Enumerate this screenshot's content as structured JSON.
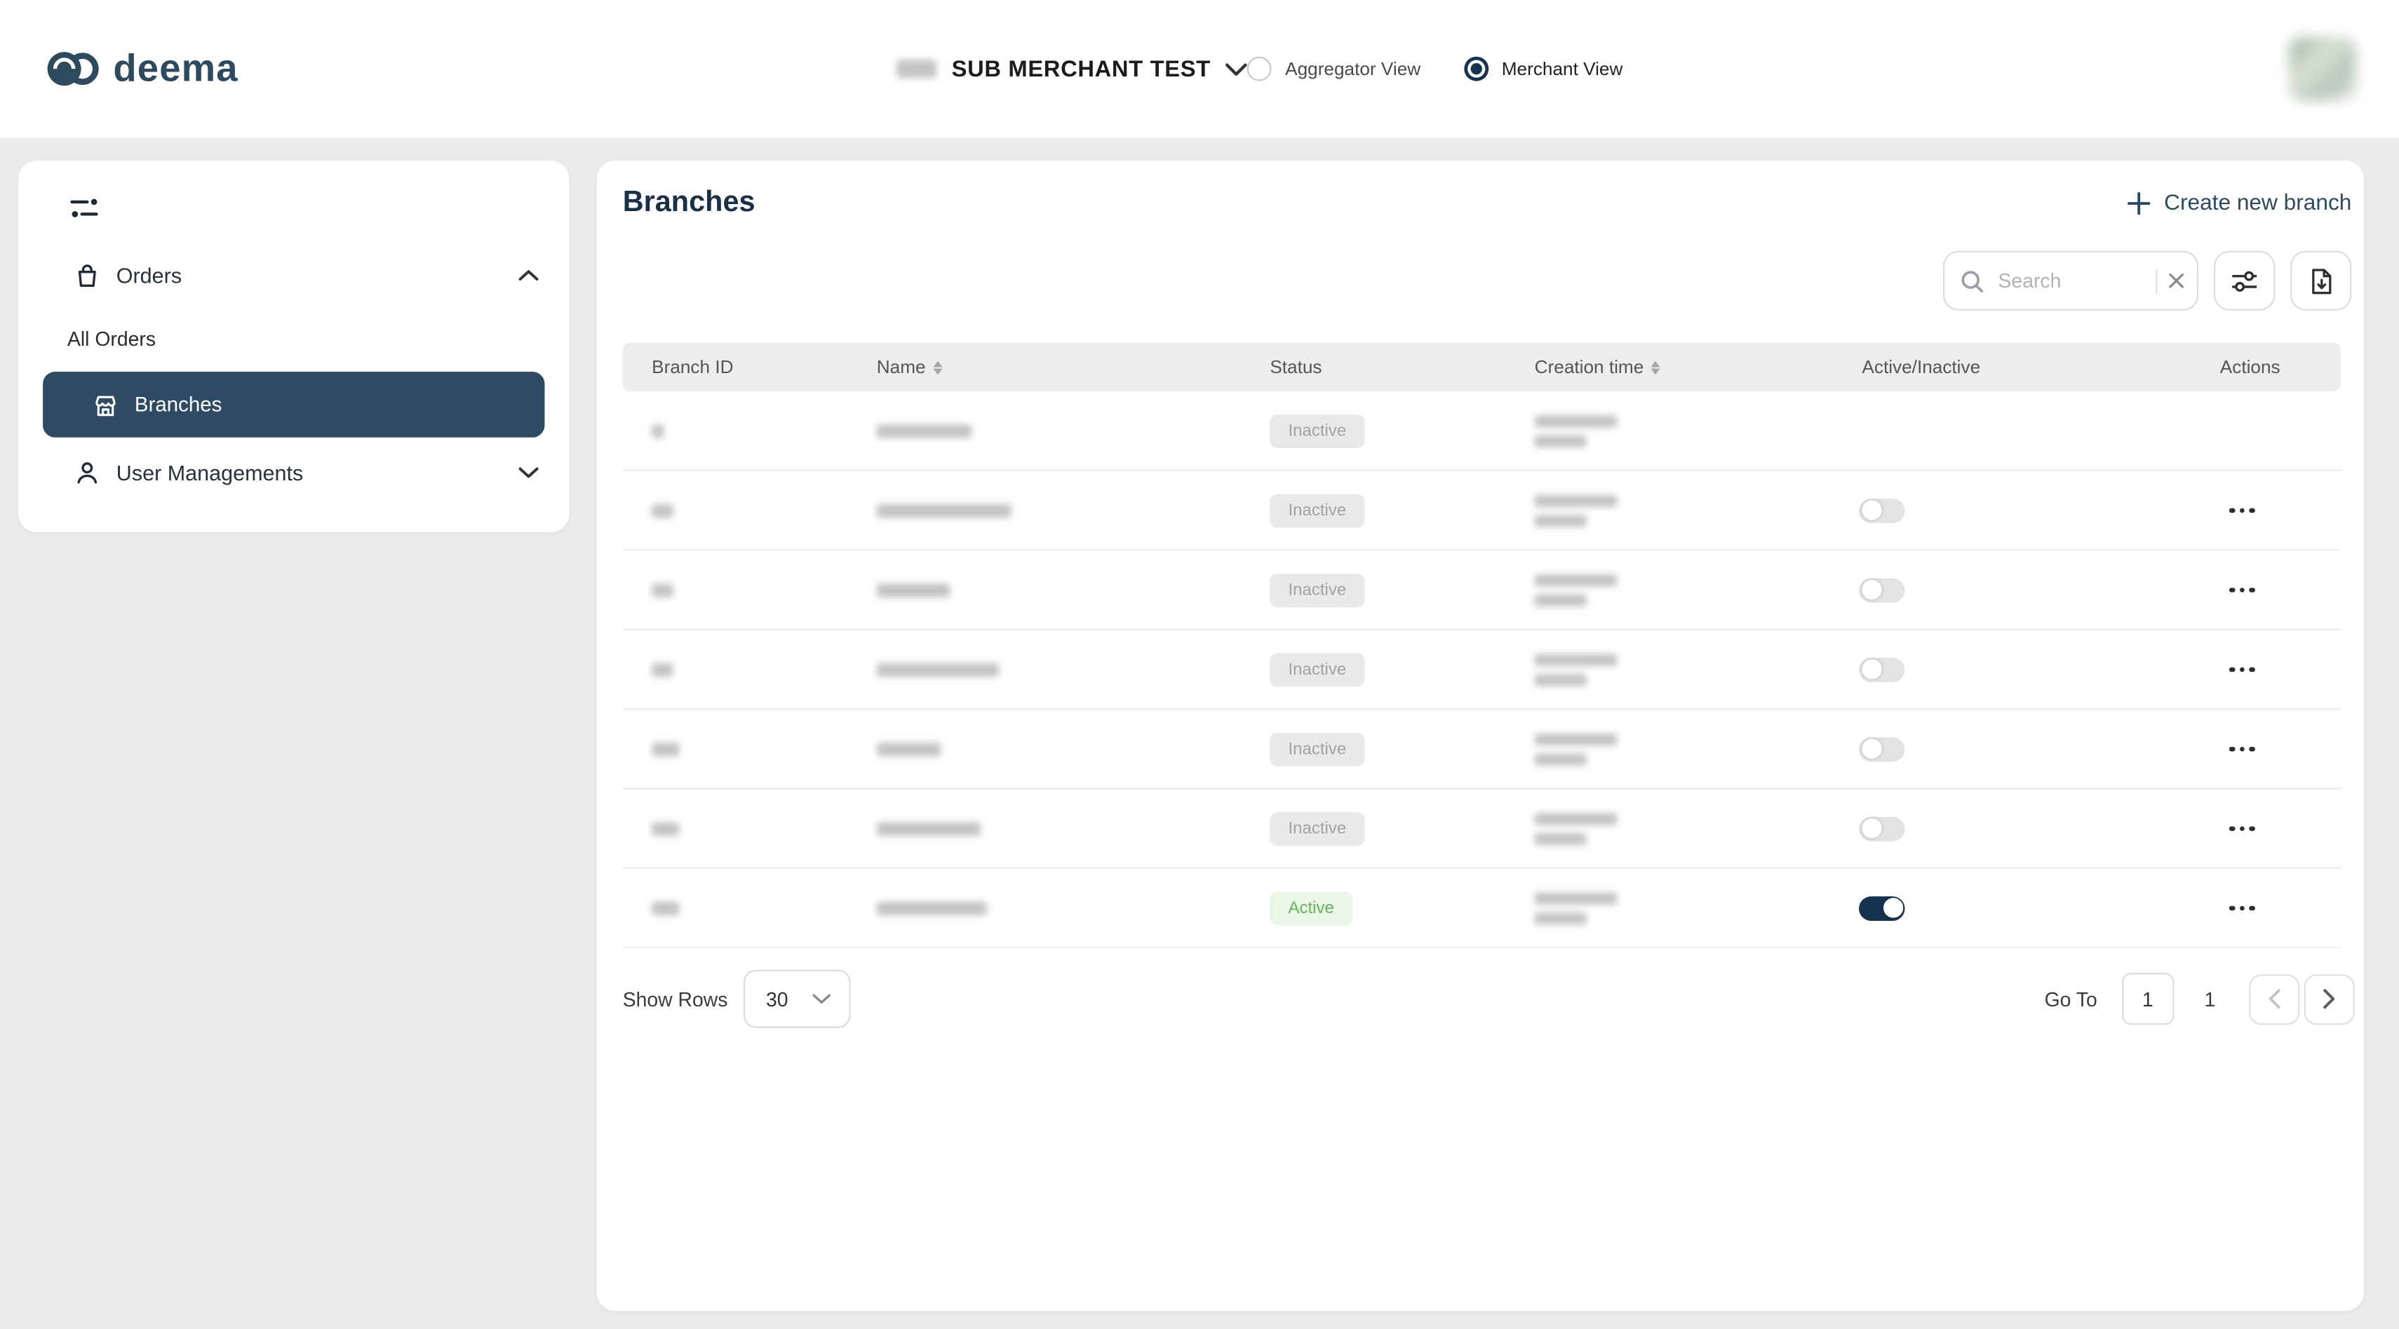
{
  "brand": {
    "name": "deema"
  },
  "header": {
    "merchant_name": "SUB MERCHANT TEST",
    "views": {
      "aggregator_label": "Aggregator View",
      "merchant_label": "Merchant View",
      "selected": "Merchant View"
    }
  },
  "sidebar": {
    "orders_label": "Orders",
    "all_orders_label": "All Orders",
    "branches_label": "Branches",
    "user_managements_label": "User Managements",
    "active_item": "Branches"
  },
  "main": {
    "title": "Branches",
    "create_new_branch_label": "Create new branch",
    "search_placeholder": "Search",
    "table": {
      "columns": [
        "Branch ID",
        "Name",
        "Status",
        "Creation time",
        "Active/Inactive",
        "Actions"
      ],
      "sorted_columns": [
        "Name",
        "Creation time"
      ],
      "rows": [
        {
          "status": "Inactive",
          "toggle": "none",
          "actions": false,
          "id_w": 8,
          "name_w": 62
        },
        {
          "status": "Inactive",
          "toggle": "off",
          "actions": true,
          "id_w": 14,
          "name_w": 88
        },
        {
          "status": "Inactive",
          "toggle": "off",
          "actions": true,
          "id_w": 14,
          "name_w": 48
        },
        {
          "status": "Inactive",
          "toggle": "off",
          "actions": true,
          "id_w": 14,
          "name_w": 80
        },
        {
          "status": "Inactive",
          "toggle": "off",
          "actions": true,
          "id_w": 18,
          "name_w": 42
        },
        {
          "status": "Inactive",
          "toggle": "off",
          "actions": true,
          "id_w": 18,
          "name_w": 68
        },
        {
          "status": "Active",
          "toggle": "on",
          "actions": true,
          "id_w": 18,
          "name_w": 72
        }
      ]
    },
    "pagination": {
      "show_rows_label": "Show Rows",
      "rows_per_page": "30",
      "go_to_label": "Go To",
      "page_input": "1",
      "total_pages": "1"
    }
  },
  "colors": {
    "accent": "#2e4a5e",
    "nav_active_bg": "#2f4b63",
    "toggle_on": "#15324e",
    "active_green": "#67b25f",
    "inactive_gray": "#a3a3a3"
  }
}
